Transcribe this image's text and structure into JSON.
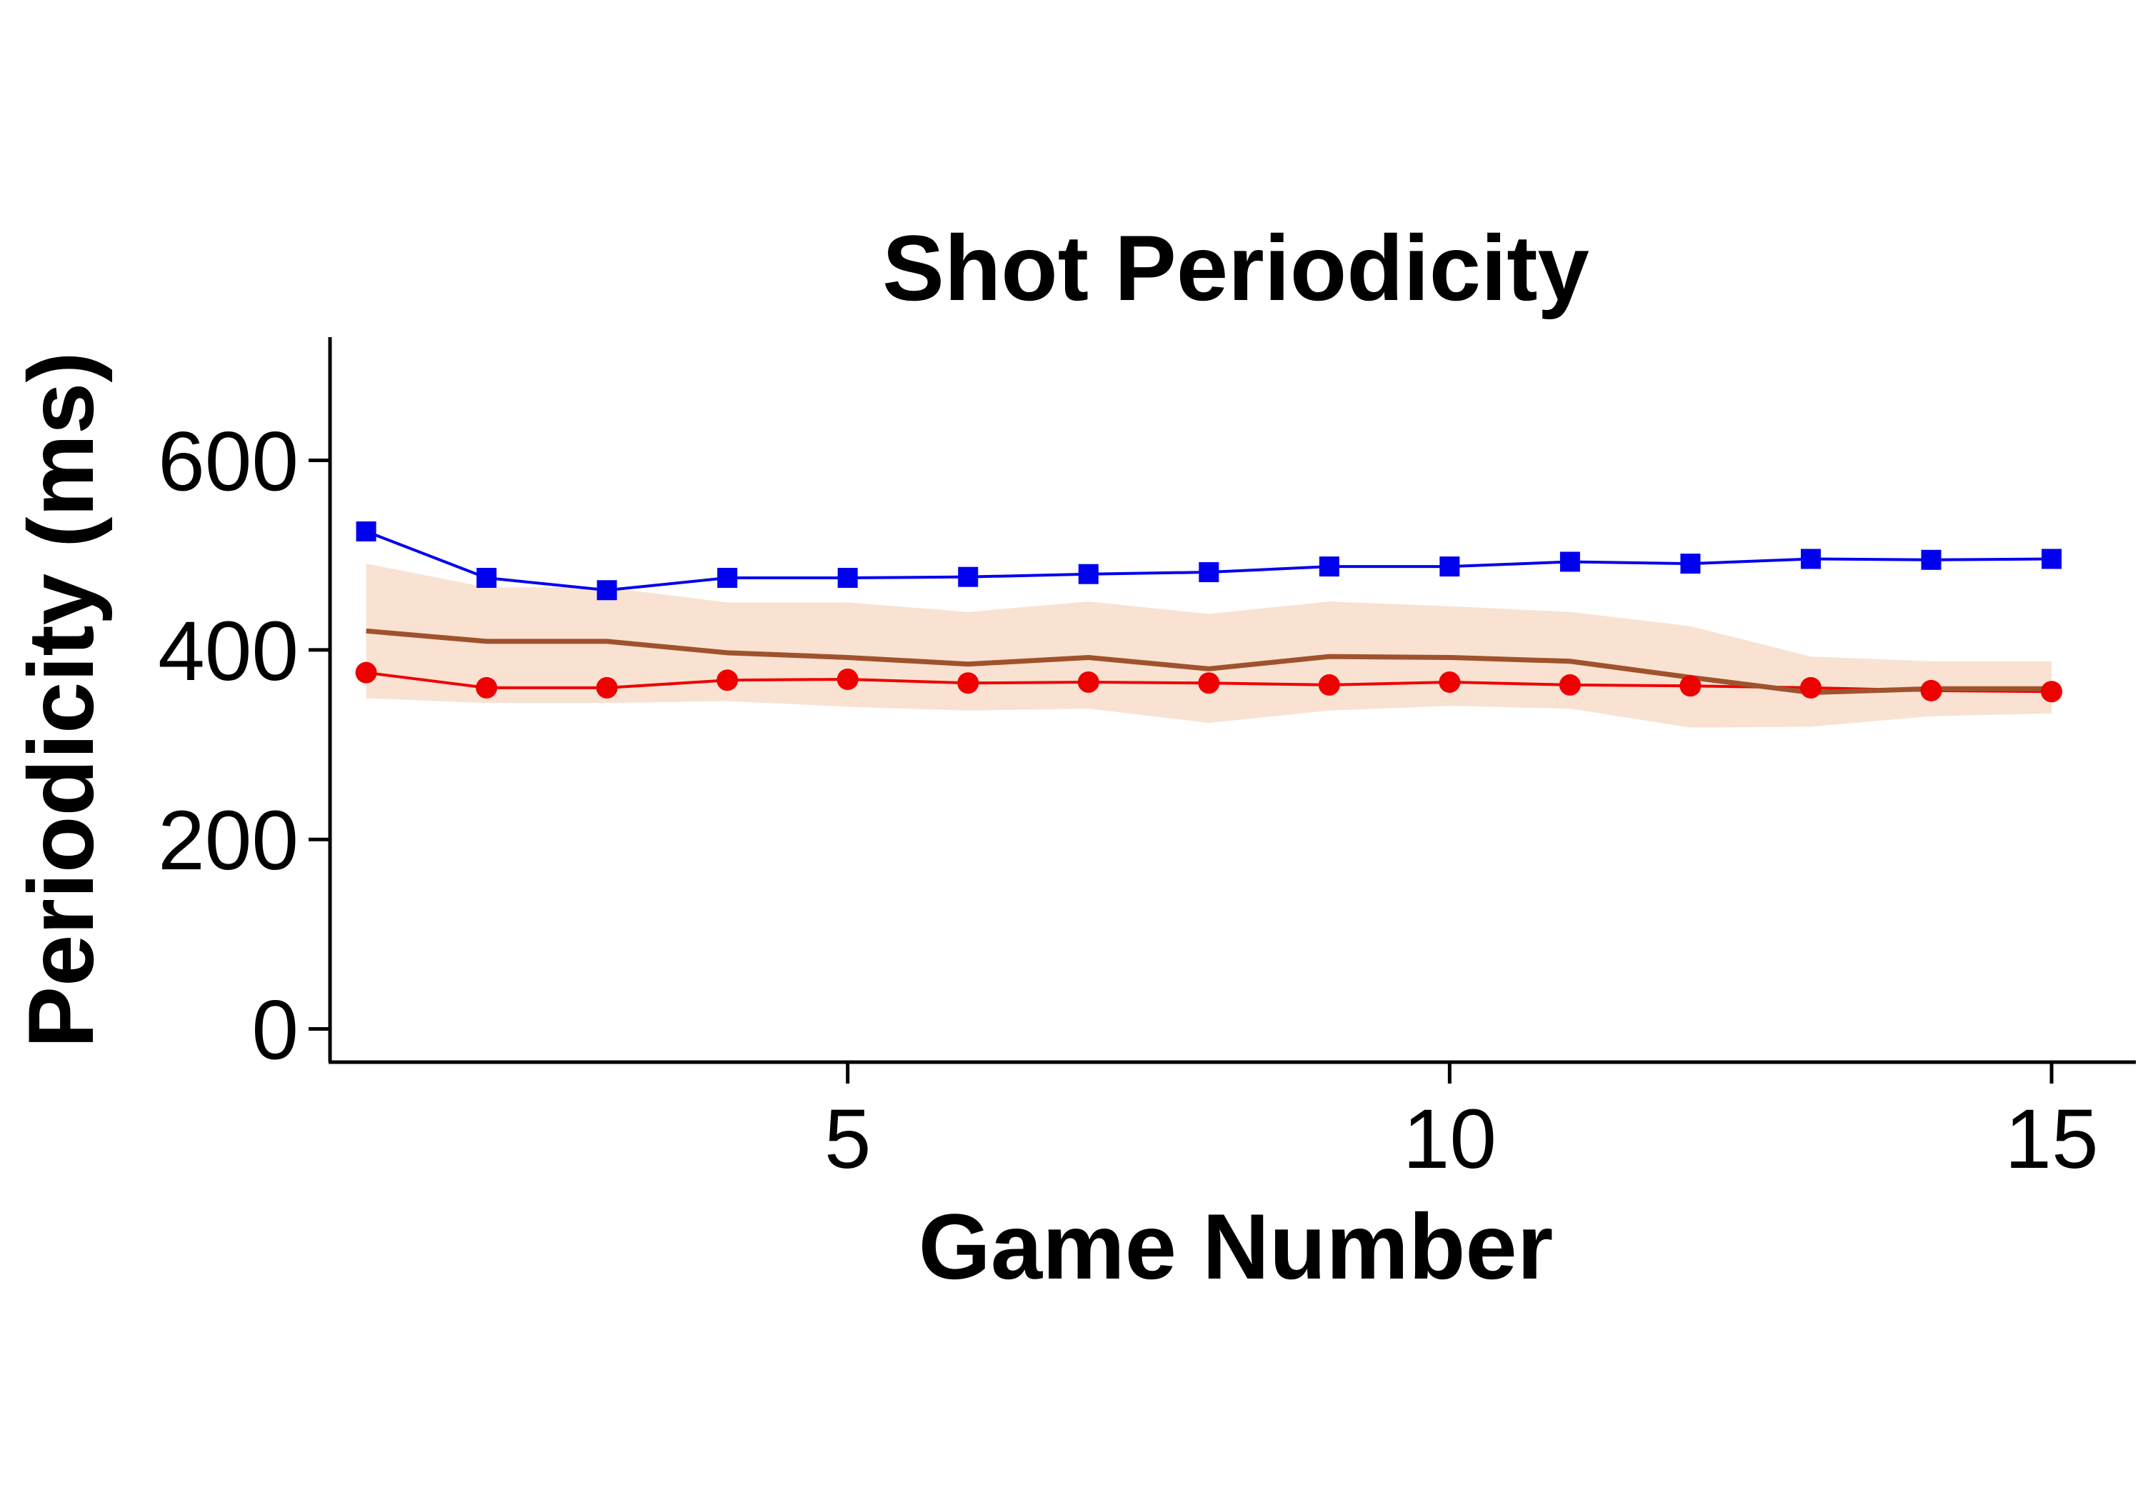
{
  "chart_data": {
    "type": "line",
    "title": "Shot Periodicity",
    "xlabel": "Game Number",
    "ylabel": "Periodicity (ms)",
    "xlim": [
      0.7,
      15.7
    ],
    "ylim": [
      -35,
      730
    ],
    "x_ticks": [
      5,
      10,
      15
    ],
    "y_ticks": [
      0,
      200,
      400,
      600
    ],
    "x_tick_labels": [
      "5",
      "10",
      "15"
    ],
    "y_tick_labels": [
      "0",
      "200",
      "400",
      "600"
    ],
    "grid": false,
    "legend": "none",
    "x": [
      1,
      2,
      3,
      4,
      5,
      6,
      7,
      8,
      9,
      10,
      11,
      12,
      13,
      14,
      15
    ],
    "series": [
      {
        "color": "#0000ee",
        "marker": "square",
        "values": [
          525,
          476,
          463,
          476,
          476,
          477,
          480,
          482,
          488,
          488,
          493,
          491,
          496,
          495,
          496
        ]
      },
      {
        "color": "#ee0000",
        "marker": "circle",
        "values": [
          376,
          360,
          360,
          368,
          369,
          365,
          366,
          365,
          363,
          366,
          363,
          362,
          360,
          357,
          356
        ]
      },
      {
        "color": "#a0522d",
        "marker": "none",
        "values": [
          420,
          409,
          409,
          397,
          392,
          385,
          392,
          380,
          393,
          392,
          388,
          371,
          355,
          359,
          359
        ],
        "band_upper": [
          491,
          466,
          466,
          450,
          450,
          440,
          451,
          438,
          451,
          446,
          440,
          425,
          393,
          388,
          388
        ],
        "band_lower": [
          349,
          344,
          344,
          346,
          340,
          336,
          338,
          323,
          336,
          341,
          338,
          318,
          319,
          330,
          333
        ],
        "band_color": "#f9e2d2"
      }
    ]
  }
}
